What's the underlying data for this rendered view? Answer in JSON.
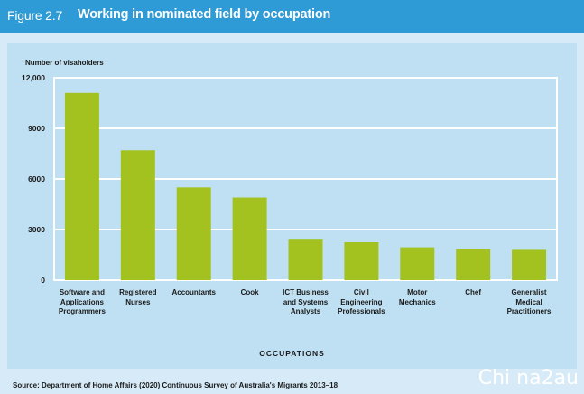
{
  "header": {
    "figure_number": "Figure 2.7",
    "title": "Working in nominated field by occupation"
  },
  "chart_data": {
    "type": "bar",
    "y_axis_title": "Number of visaholders",
    "xlabel": "OCCUPATIONS",
    "ylim": [
      0,
      12000
    ],
    "yticks": [
      0,
      3000,
      6000,
      9000,
      12000
    ],
    "ytick_labels": [
      "0",
      "3000",
      "6000",
      "9000",
      "12,000"
    ],
    "grid": true,
    "bar_color": "#a3c21f",
    "categories": [
      "Software and Applications Programmers",
      "Registered Nurses",
      "Accountants",
      "Cook",
      "ICT Business and Systems Analysts",
      "Civil Engineering Professionals",
      "Motor Mechanics",
      "Chef",
      "Generalist Medical Practitioners"
    ],
    "category_lines": [
      [
        "Software and",
        "Applications",
        "Programmers"
      ],
      [
        "Registered",
        "Nurses"
      ],
      [
        "Accountants"
      ],
      [
        "Cook"
      ],
      [
        "ICT Business",
        "and Systems",
        "Analysts"
      ],
      [
        "Civil",
        "Engineering",
        "Professionals"
      ],
      [
        "Motor",
        "Mechanics"
      ],
      [
        "Chef"
      ],
      [
        "Generalist",
        "Medical",
        "Practitioners"
      ]
    ],
    "values": [
      11100,
      7700,
      5500,
      4900,
      2400,
      2250,
      1950,
      1850,
      1800
    ]
  },
  "source": "Source: Department of Home Affairs (2020) Continuous Survey of Australia's Migrants 2013–18",
  "watermark": "Chi na2au"
}
